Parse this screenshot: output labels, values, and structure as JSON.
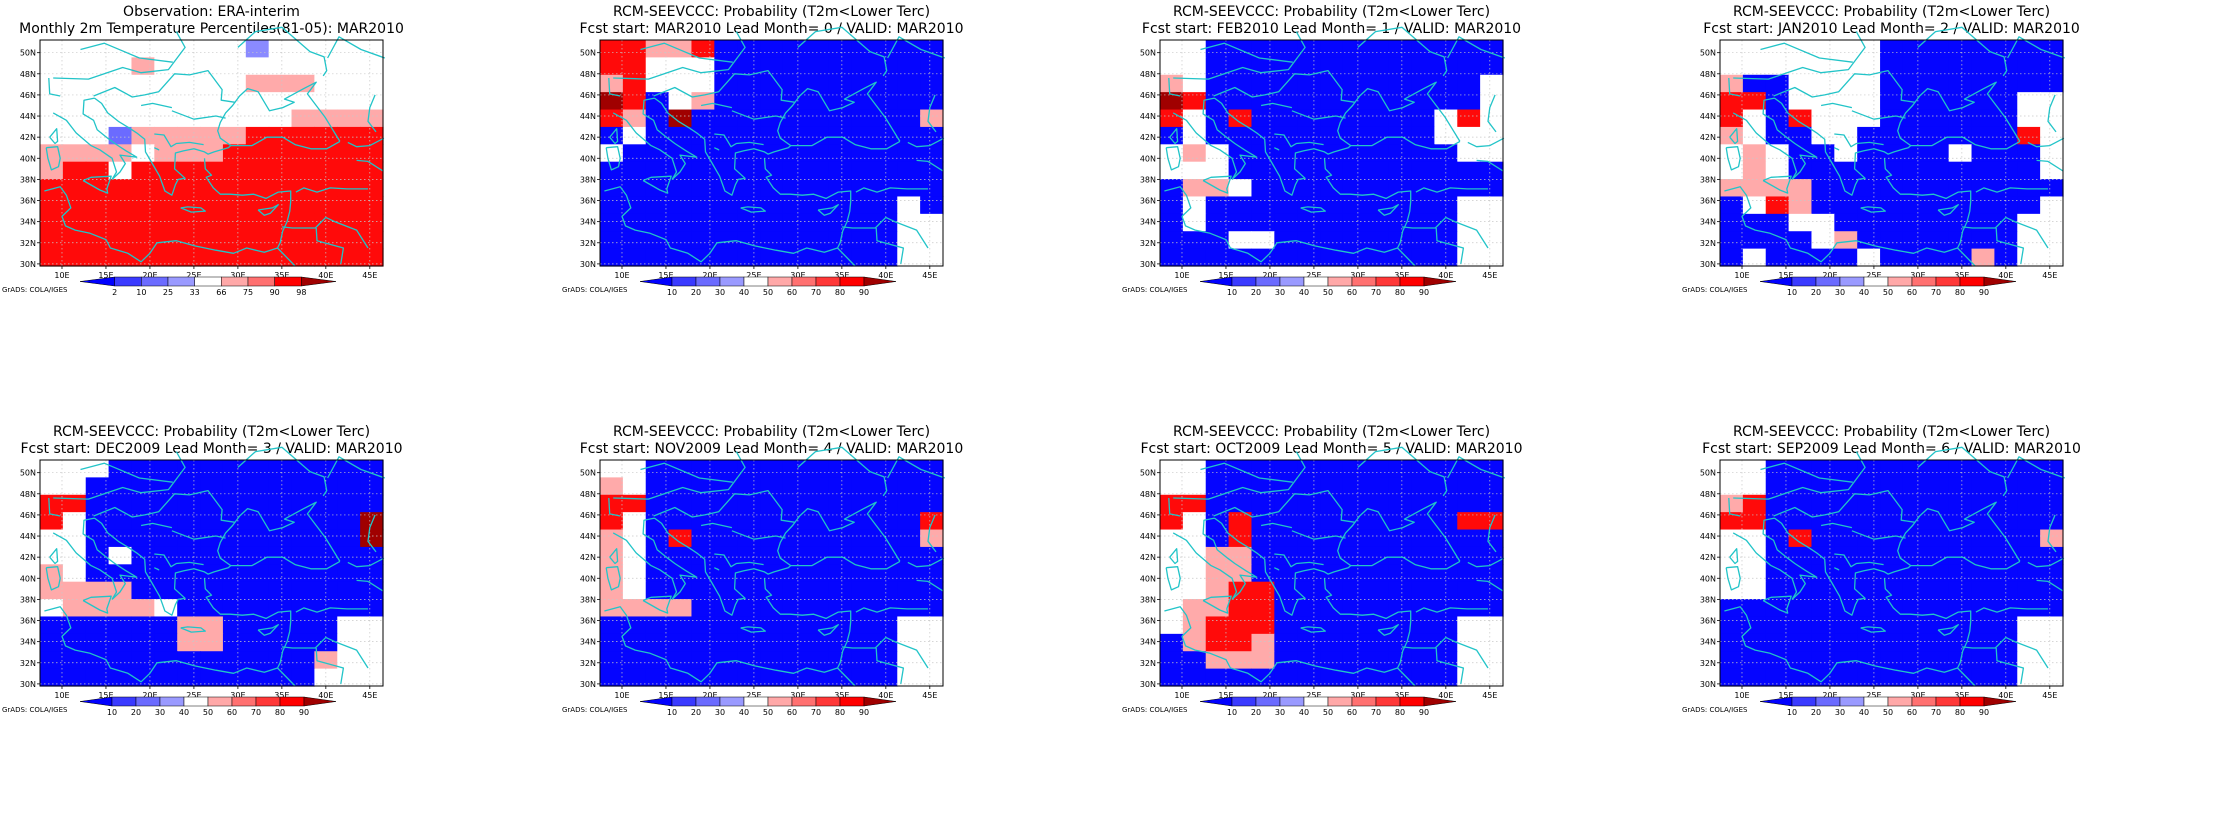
{
  "credit": "GrADS: COLA/IGES",
  "lon_ticks": [
    "10E",
    "15E",
    "20E",
    "25E",
    "30E",
    "35E",
    "40E",
    "45E"
  ],
  "lat_ticks": [
    "30N",
    "32N",
    "34N",
    "36N",
    "38N",
    "40N",
    "42N",
    "44N",
    "46N",
    "48N",
    "50N"
  ],
  "colors": {
    "coast": "#22c4c8",
    "grid": "#c8c8c8",
    "prob_scale": [
      "#0000ff",
      "#3a3aff",
      "#6b6bff",
      "#9a9aff",
      "#ffffff",
      "#ffa8a8",
      "#ff7070",
      "#ff3838",
      "#ff0000",
      "#a00000"
    ],
    "obs_scale": [
      "#0000ff",
      "#3a3aff",
      "#6b6bff",
      "#9a9aff",
      "#ffffff",
      "#ffa8a8",
      "#ff7070",
      "#ff0000",
      "#a00000"
    ]
  },
  "obs_colorbar_labels": [
    "2",
    "10",
    "25",
    "33",
    "66",
    "75",
    "90",
    "98"
  ],
  "prob_colorbar_labels": [
    "10",
    "20",
    "30",
    "40",
    "50",
    "60",
    "70",
    "80",
    "90"
  ],
  "panels": [
    {
      "title1": "Observation: ERA-interim",
      "title2": "Monthly 2m Temperature Percentiles(81-05): MAR2010",
      "kind": "obs",
      "grid": [
        "wwwwwwwwwcwwwww",
        "wwwwgwwwwwwwwww",
        "wwwwwwwwwgggwww",
        "wwwwwwwwwwwwwww",
        "wwwwwwwwwwwgggg",
        "wwwhgggggRRRRRR",
        "ggggwgggRRRRRRR",
        "gRRwRRRRRRRRRRR",
        "RRRRRRRRRRRRRRR",
        "RRRRRRRRRRRRRRR",
        "RRRRRRRRRRRRRRR",
        "RRRRRRRRRRRRRRR",
        "RRRRRRRRRRRRRRR"
      ]
    },
    {
      "title1": "RCM-SEEVCCC: Probability (T2m<Lower Terc)",
      "title2": "Fcst start: MAR2010   Lead Month= 0 / VALID: MAR2010",
      "kind": "prob",
      "grid": [
        "RRggRbbbbbbbbbb",
        "RRwwwbbbbbbbbbb",
        "gRwwwbbbbbbbbbb",
        "DRbwgbbbbbbbbbb",
        "RgbDbbbbbbbbbbg",
        "bwbbbbbbbbbbbbb",
        "wbbbbbbbbbbbbbb",
        "bbbbbbbbbbbbbbb",
        "bbbbbbbbbbbbbbb",
        "bbbbbbbbbbbbbwb",
        "bbbbbbbbbbbbbww",
        "bbbbbbbbbbbbbww",
        "bbbbbbbbbbbbbww"
      ]
    },
    {
      "title1": "RCM-SEEVCCC: Probability (T2m<Lower Terc)",
      "title2": "Fcst start: FEB2010   Lead Month= 1 / VALID: MAR2010",
      "kind": "prob",
      "grid": [
        "wwbbbbbbbbbbbbb",
        "wwbbbbbbbbbbbbb",
        "gwbbbbbbbbbbbbw",
        "DRbbbbbbbbbbbbw",
        "RwbRbbbbbbbbwRw",
        "bwbbbbbbbbbbwww",
        "wgwbbbbbbbbbbww",
        "wwwbbbbbbbbbbbb",
        "bggwbbbbbbbbbbb",
        "bwbbbbbbbbbbbww",
        "bwbbbbbbbbbbbww",
        "bbbwwbbbbbbbbww",
        "bbbbbbbbbbbbbww"
      ]
    },
    {
      "title1": "RCM-SEEVCCC: Probability (T2m<Lower Terc)",
      "title2": "Fcst start: JAN2010   Lead Month= 2 / VALID: MAR2010",
      "kind": "prob",
      "grid": [
        "wwwwwwwbbbbbbbb",
        "wwwwwwwbbbbbbbb",
        "gbbwwwwbbbbbbbb",
        "RRbwwwwbbbbbbww",
        "RwbRwwwbbbbbbww",
        "gwbbwwbbbbbbbRw",
        "wgwbbwbbbbwbbbw",
        "wgwbbbbbbbbbbbw",
        "ggggbbbbbbbbbbb",
        "bwRgbbbbbbbbbbw",
        "bbbwwbbbbbbbbww",
        "bbbbwgbbbbbbbww",
        "bwbbbbwbbbbgbww"
      ]
    },
    {
      "title1": "RCM-SEEVCCC: Probability (T2m<Lower Terc)",
      "title2": "Fcst start: DEC2009   Lead Month= 3 / VALID: MAR2010",
      "kind": "prob",
      "grid": [
        "wwwbbbbbbbbbbbb",
        "wwbbbbbbbbbbbbb",
        "RRbbbbbbbbbbbbb",
        "RwbbbbbbbbbbbbD",
        "wwbbbbbbbbbbbbD",
        "wwbwbbbbbbbbbbb",
        "gwbbbbbbbbbbbbb",
        "ggggbbbbbbbbbbb",
        "wggggwbbbbbbbbb",
        "bbbbbbggbbbbbww",
        "bbbbbbggbbbbbww",
        "bbbbbbbbbbbbgww",
        "bbbbbbbbbbbbwww"
      ]
    },
    {
      "title1": "RCM-SEEVCCC: Probability (T2m<Lower Terc)",
      "title2": "Fcst start: NOV2009   Lead Month= 4 / VALID: MAR2010",
      "kind": "prob",
      "grid": [
        "wwbbbbbbbbbbbbb",
        "gwbbbbbbbbbbbbb",
        "RRbbbbbbbbbbbbb",
        "RwbbbbbbbbbbbbR",
        "gwbRbbbbbbbbbbg",
        "gwbbbbbbbbbbbbb",
        "gwbbbbbbbbbbbbb",
        "gwbbbbbbbbbbbbb",
        "ggggbbbbbbbbbbb",
        "bbbbbbbbbbbbbww",
        "bbbbbbbbbbbbbww",
        "bbbbbbbbbbbbbww",
        "bbbbbbbbbbbbbww"
      ]
    },
    {
      "title1": "RCM-SEEVCCC: Probability (T2m<Lower Terc)",
      "title2": "Fcst start: OCT2009   Lead Month= 5 / VALID: MAR2010",
      "kind": "prob",
      "grid": [
        "wwbbbbbbbbbbbbb",
        "wwbbbbbbbbbbbbb",
        "RRbbbbbbbbbbbbb",
        "RwbRbbbbbbbbbRR",
        "wwbRbbbbbbbbbbb",
        "wwggbbbbbbbbbbb",
        "wwggbbbbbbbbbbb",
        "wwgRRbbbbbbbbbb",
        "wggRRbbbbbbbbbb",
        "wgRRRbbbbbbbbww",
        "bgRRgbbbbbbbbww",
        "bbgggbbbbbbbbww",
        "bbbbbbbbbbbbbww"
      ]
    },
    {
      "title1": "RCM-SEEVCCC: Probability (T2m<Lower Terc)",
      "title2": "Fcst start: SEP2009   Lead Month= 6 / VALID: MAR2010",
      "kind": "prob",
      "grid": [
        "wwbbbbbbbbbbbbb",
        "wwbbbbbbbbbbbbb",
        "gRbbbbbbbbbbbbb",
        "RRbbbbbbbbbbbbb",
        "wwbRbbbbbbbbbbg",
        "wwbbbbbbbbbbbbb",
        "wwbbbbbbbbbbbbb",
        "wwbbbbbbbbbbbbb",
        "bbbbbbbbbbbbbbb",
        "bbbbbbbbbbbbbww",
        "bbbbbbbbbbbbbww",
        "bbbbbbbbbbbbbww",
        "bbbbbbbbbbbbbww"
      ]
    }
  ]
}
